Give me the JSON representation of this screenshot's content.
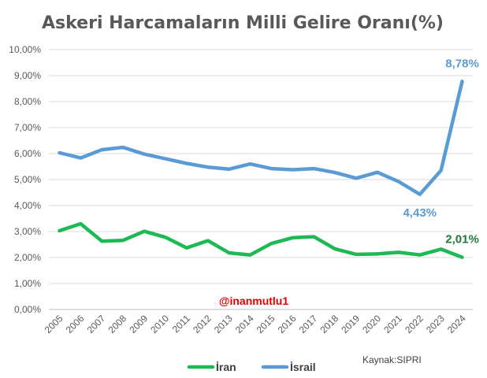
{
  "chart_data": {
    "type": "line",
    "title": "Askeri Harcamaların Milli Gelire Oranı(%)",
    "categories": [
      "2005",
      "2006",
      "2007",
      "2008",
      "2009",
      "2010",
      "2011",
      "2012",
      "2013",
      "2014",
      "2015",
      "2016",
      "2017",
      "2018",
      "2019",
      "2020",
      "2021",
      "2022",
      "2023",
      "2024"
    ],
    "y_ticks": [
      "0,00%",
      "1,00%",
      "2,00%",
      "3,00%",
      "4,00%",
      "5,00%",
      "6,00%",
      "7,00%",
      "8,00%",
      "9,00%",
      "10,00%"
    ],
    "ylim": [
      0,
      10
    ],
    "grid": true,
    "legend_position": "bottom",
    "series": [
      {
        "name": "İran",
        "color": "#1db954",
        "values": [
          3.03,
          3.3,
          2.63,
          2.66,
          3.01,
          2.78,
          2.37,
          2.65,
          2.18,
          2.1,
          2.54,
          2.76,
          2.8,
          2.33,
          2.12,
          2.14,
          2.2,
          2.1,
          2.32,
          2.01
        ]
      },
      {
        "name": "İsrail",
        "color": "#5b9bd5",
        "values": [
          6.03,
          5.83,
          6.15,
          6.24,
          5.98,
          5.8,
          5.62,
          5.48,
          5.4,
          5.6,
          5.42,
          5.38,
          5.42,
          5.27,
          5.05,
          5.28,
          4.92,
          4.43,
          5.35,
          8.78
        ]
      }
    ],
    "annotations": [
      {
        "series": "İsrail",
        "index": 19,
        "text": "8,78%",
        "color": "#5b9bd5"
      },
      {
        "series": "İsrail",
        "index": 17,
        "text": "4,43%",
        "color": "#5b9bd5"
      },
      {
        "series": "İran",
        "index": 19,
        "text": "2,01%",
        "color": "#1f7a3a"
      }
    ]
  },
  "watermark": "@inanmutlu1",
  "source": "Kaynak:SIPRI"
}
